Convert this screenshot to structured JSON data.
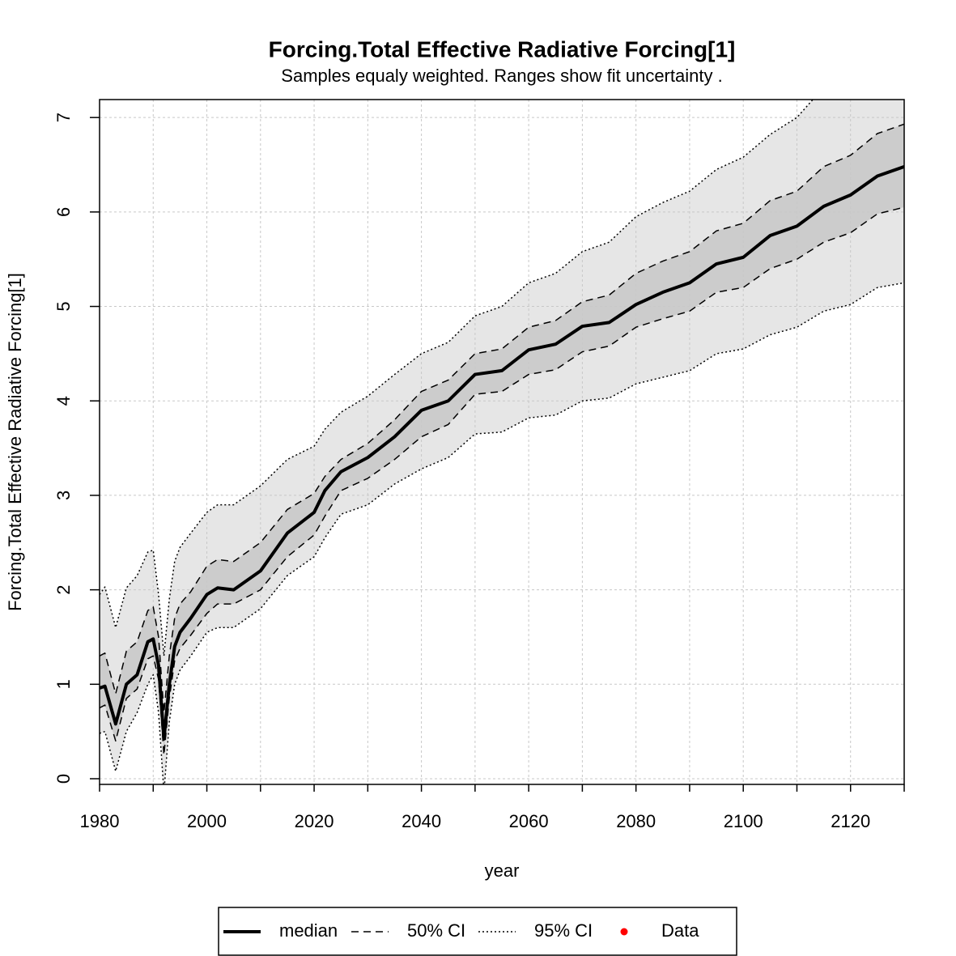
{
  "chart_data": {
    "type": "line",
    "title": "Forcing.Total Effective Radiative Forcing[1]",
    "subtitle": "Samples equaly weighted. Ranges show  fit uncertainty .",
    "xlabel": "year",
    "ylabel": "Forcing.Total Effective Radiative Forcing[1]",
    "x": [
      1980,
      1981,
      1983,
      1985,
      1987,
      1989,
      1990,
      1991,
      1992,
      1993,
      1994,
      1995,
      1997,
      2000,
      2002,
      2005,
      2010,
      2015,
      2020,
      2022,
      2025,
      2030,
      2035,
      2040,
      2045,
      2050,
      2055,
      2060,
      2065,
      2070,
      2075,
      2080,
      2085,
      2090,
      2095,
      2100,
      2105,
      2110,
      2115,
      2120,
      2125,
      2130
    ],
    "xlim": [
      1980,
      2130
    ],
    "ylim": [
      -0.06,
      7.19
    ],
    "xticks": [
      1980,
      2000,
      2020,
      2040,
      2060,
      2080,
      2100,
      2120
    ],
    "xminor_ticks": [
      1990,
      2010,
      2030,
      2050,
      2070,
      2090,
      2110,
      2130
    ],
    "yticks": [
      0,
      1,
      2,
      3,
      4,
      5,
      6,
      7
    ],
    "grid": true,
    "series": [
      {
        "name": "median",
        "color": "#000000",
        "style": "solid",
        "values": [
          0.96,
          0.98,
          0.58,
          1.0,
          1.1,
          1.45,
          1.48,
          1.2,
          0.42,
          1.0,
          1.4,
          1.55,
          1.7,
          1.95,
          2.02,
          2.0,
          2.2,
          2.6,
          2.82,
          3.05,
          3.25,
          3.4,
          3.62,
          3.9,
          4.0,
          4.28,
          4.32,
          4.54,
          4.6,
          4.79,
          4.83,
          5.02,
          5.15,
          5.25,
          5.45,
          5.52,
          5.75,
          5.85,
          6.06,
          6.18,
          6.38,
          6.48
        ]
      },
      {
        "name": "50% CI",
        "color": "#000000",
        "style": "dashed",
        "fill": "#cccccc",
        "upper": [
          1.3,
          1.33,
          0.9,
          1.35,
          1.45,
          1.78,
          1.82,
          1.5,
          0.7,
          1.3,
          1.7,
          1.85,
          1.98,
          2.25,
          2.32,
          2.3,
          2.5,
          2.85,
          3.02,
          3.2,
          3.38,
          3.55,
          3.8,
          4.1,
          4.22,
          4.5,
          4.55,
          4.78,
          4.85,
          5.05,
          5.12,
          5.35,
          5.48,
          5.58,
          5.8,
          5.88,
          6.12,
          6.22,
          6.48,
          6.6,
          6.83,
          6.93
        ],
        "lower": [
          0.75,
          0.78,
          0.4,
          0.85,
          0.95,
          1.27,
          1.3,
          1.05,
          0.25,
          0.85,
          1.25,
          1.38,
          1.52,
          1.75,
          1.85,
          1.85,
          2.0,
          2.35,
          2.58,
          2.78,
          3.05,
          3.18,
          3.38,
          3.62,
          3.75,
          4.07,
          4.1,
          4.28,
          4.33,
          4.52,
          4.58,
          4.78,
          4.87,
          4.95,
          5.15,
          5.2,
          5.4,
          5.5,
          5.68,
          5.78,
          5.98,
          6.05
        ]
      },
      {
        "name": "95% CI",
        "color": "#000000",
        "style": "dotted",
        "fill": "#e6e6e6",
        "upper": [
          1.95,
          2.03,
          1.6,
          2.02,
          2.15,
          2.4,
          2.42,
          1.95,
          1.3,
          1.9,
          2.3,
          2.45,
          2.6,
          2.82,
          2.9,
          2.9,
          3.1,
          3.38,
          3.52,
          3.7,
          3.88,
          4.05,
          4.28,
          4.5,
          4.62,
          4.9,
          5.0,
          5.25,
          5.35,
          5.58,
          5.68,
          5.95,
          6.1,
          6.22,
          6.45,
          6.58,
          6.82,
          7.0,
          7.32,
          7.45,
          7.68,
          7.8
        ],
        "lower": [
          0.48,
          0.5,
          0.08,
          0.5,
          0.7,
          1.0,
          1.1,
          0.7,
          -0.15,
          0.6,
          1.0,
          1.15,
          1.3,
          1.55,
          1.6,
          1.6,
          1.8,
          2.15,
          2.35,
          2.55,
          2.8,
          2.9,
          3.12,
          3.28,
          3.4,
          3.65,
          3.67,
          3.82,
          3.85,
          4.0,
          4.03,
          4.18,
          4.25,
          4.32,
          4.5,
          4.55,
          4.7,
          4.78,
          4.95,
          5.02,
          5.2,
          5.25
        ]
      },
      {
        "name": "Data",
        "color": "#ff0000",
        "style": "point"
      }
    ]
  }
}
